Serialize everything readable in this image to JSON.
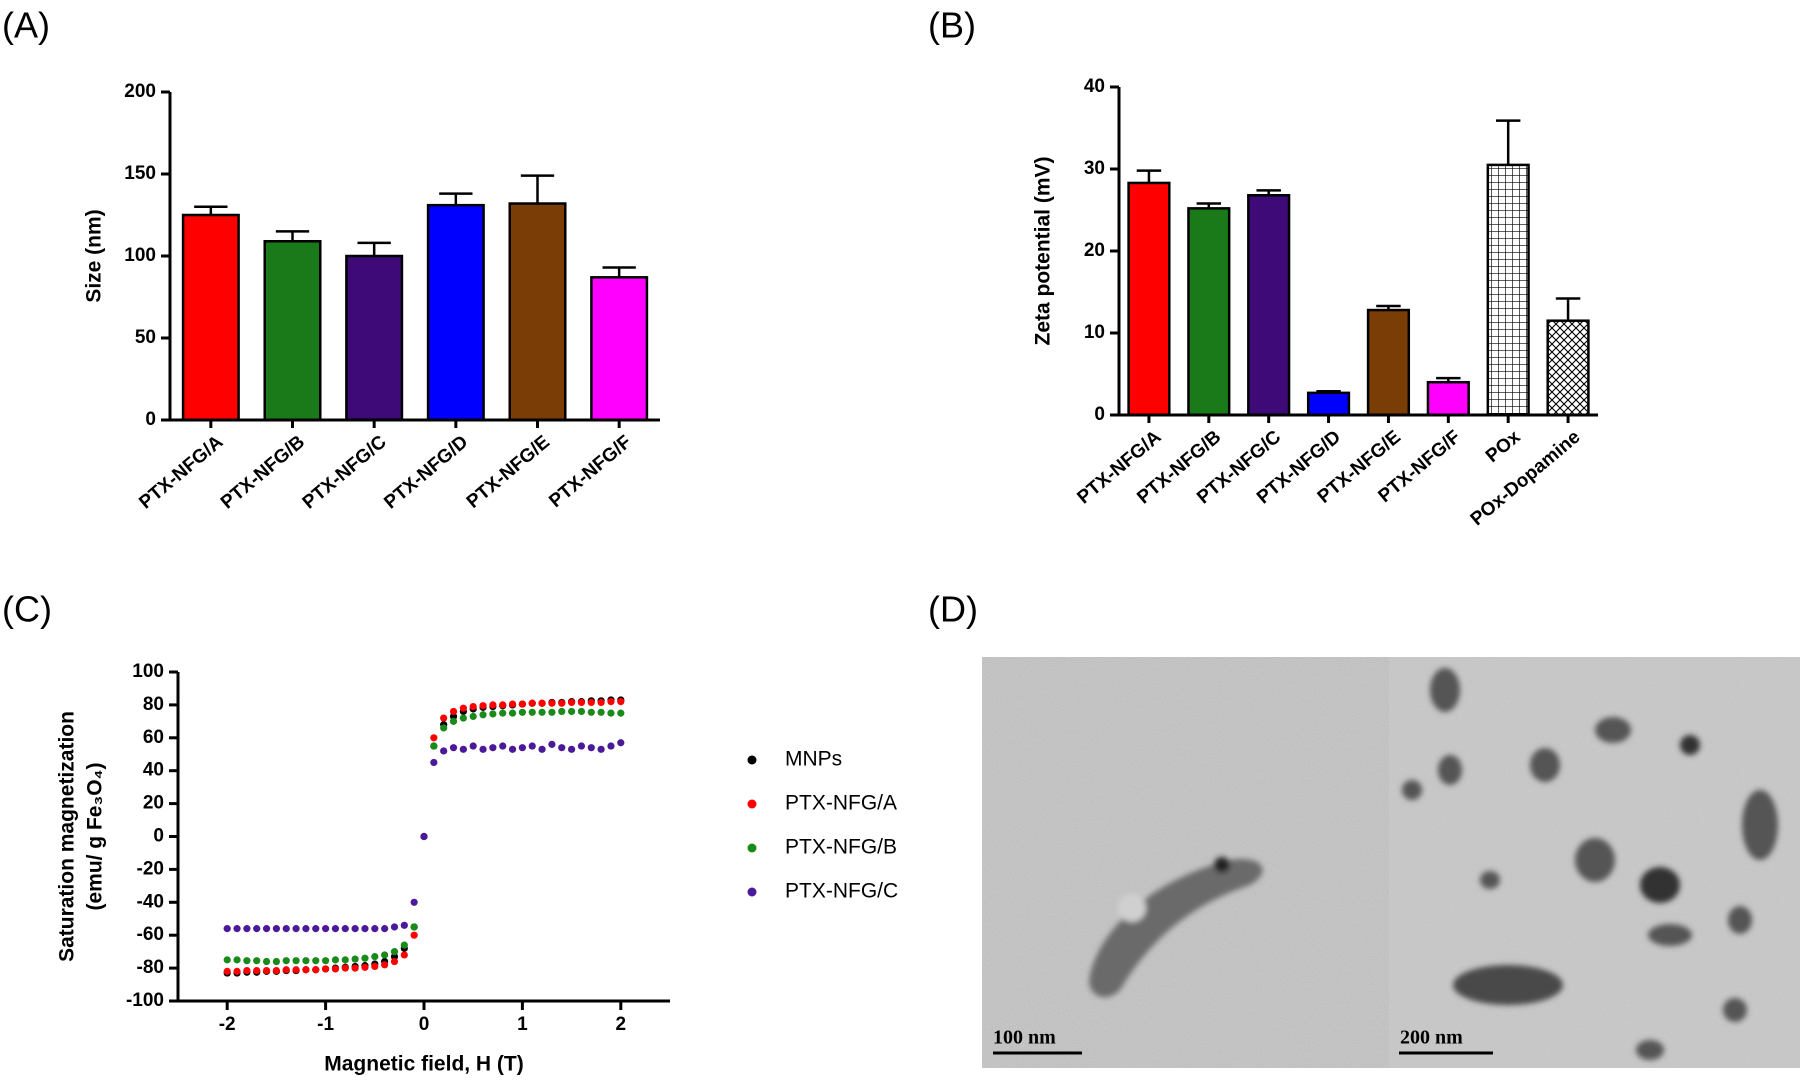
{
  "chart_data": [
    {
      "type": "bar",
      "panel": "(A)",
      "ylabel": "Size (nm)",
      "categories": [
        "PTX-NFG/A",
        "PTX-NFG/B",
        "PTX-NFG/C",
        "PTX-NFG/D",
        "PTX-NFG/E",
        "PTX-NFG/F"
      ],
      "values": [
        125,
        109,
        100,
        131,
        132,
        87
      ],
      "errors": [
        5,
        6,
        8,
        7,
        17,
        6
      ],
      "colors": [
        "#ff0000",
        "#1a7a1a",
        "#3d0a78",
        "#0000ff",
        "#7a3d05",
        "#ff00ff"
      ],
      "ylim": [
        0,
        200
      ],
      "yticks": [
        0,
        50,
        100,
        150,
        200
      ]
    },
    {
      "type": "bar",
      "panel": "(B)",
      "ylabel": "Zeta potential (mV)",
      "categories": [
        "PTX-NFG/A",
        "PTX-NFG/B",
        "PTX-NFG/C",
        "PTX-NFG/D",
        "PTX-NFG/E",
        "PTX-NFG/F",
        "POx",
        "POx-Dopamine"
      ],
      "values": [
        28.3,
        25.2,
        26.8,
        2.7,
        12.8,
        4.0,
        30.5,
        11.5
      ],
      "errors": [
        1.5,
        0.6,
        0.6,
        0.2,
        0.5,
        0.5,
        5.4,
        2.7
      ],
      "colors": [
        "#ff0000",
        "#1a7a1a",
        "#3d0a78",
        "#0000ff",
        "#7a3d05",
        "#ff00ff",
        "#ffffff",
        "#ffffff"
      ],
      "hatch": [
        null,
        null,
        null,
        null,
        null,
        null,
        "grid",
        "diagonal"
      ],
      "ylim": [
        0,
        40
      ],
      "yticks": [
        0,
        10,
        20,
        30,
        40
      ]
    },
    {
      "type": "scatter",
      "panel": "(C)",
      "xlabel": "Magnetic field, H (T)",
      "ylabel": [
        "Saturation magnetization",
        "(emu/ g Fe₃O₄)"
      ],
      "x": [
        -2.0,
        -1.9,
        -1.8,
        -1.7,
        -1.6,
        -1.5,
        -1.4,
        -1.3,
        -1.2,
        -1.1,
        -1.0,
        -0.9,
        -0.8,
        -0.7,
        -0.6,
        -0.5,
        -0.4,
        -0.3,
        -0.2,
        -0.1,
        0.0,
        0.1,
        0.2,
        0.3,
        0.4,
        0.5,
        0.6,
        0.7,
        0.8,
        0.9,
        1.0,
        1.1,
        1.2,
        1.3,
        1.4,
        1.5,
        1.6,
        1.7,
        1.8,
        1.9,
        2.0
      ],
      "series": [
        {
          "name": "MNPs",
          "color": "#000000",
          "values": [
            -83,
            -83,
            -82.5,
            -82.5,
            -82,
            -82,
            -81.5,
            -81.5,
            -81,
            -81,
            -80.5,
            -80,
            -79.5,
            -79,
            -78.5,
            -77.5,
            -76,
            -73,
            -68,
            -55,
            0,
            55,
            68,
            73,
            76,
            77.5,
            78.5,
            79,
            79.5,
            80,
            80.5,
            81,
            81,
            81.5,
            81.5,
            82,
            82,
            82.5,
            82.5,
            83,
            83
          ]
        },
        {
          "name": "PTX-NFG/A",
          "color": "#ff0000",
          "values": [
            -82,
            -82,
            -81.5,
            -81.5,
            -81.5,
            -81.5,
            -81,
            -81,
            -81,
            -81,
            -80.5,
            -80.5,
            -80,
            -80,
            -79.5,
            -79,
            -78,
            -76,
            -72,
            -60,
            0,
            60,
            72,
            76,
            78,
            79,
            79.5,
            80,
            80,
            80.5,
            80.5,
            81,
            81,
            81,
            81,
            81.5,
            81.5,
            81.5,
            81.5,
            82,
            82
          ]
        },
        {
          "name": "PTX-NFG/B",
          "color": "#1a8a1a",
          "values": [
            -75,
            -75,
            -75.5,
            -75.5,
            -76,
            -76,
            -75.5,
            -75.5,
            -75.5,
            -75.5,
            -75.5,
            -75,
            -75,
            -74.5,
            -74,
            -73,
            -72,
            -70,
            -66,
            -55,
            0,
            55,
            66,
            70,
            72,
            73,
            74,
            74.5,
            75,
            75,
            75.5,
            75.5,
            75.5,
            75.5,
            76,
            76,
            76,
            75.5,
            75.5,
            75,
            75
          ]
        },
        {
          "name": "PTX-NFG/C",
          "color": "#4b1a9a",
          "values": [
            -56,
            -56,
            -56,
            -56,
            -56,
            -56,
            -56,
            -56,
            -56,
            -56,
            -56,
            -56,
            -56,
            -56,
            -56,
            -56,
            -56,
            -55,
            -54,
            -40,
            0,
            45,
            52,
            54,
            53,
            55,
            53,
            54,
            55,
            53,
            54,
            55,
            53,
            56,
            54,
            53,
            55,
            54,
            53,
            55,
            57
          ]
        }
      ],
      "xlim": [
        -2.5,
        2.5
      ],
      "xticks": [
        -2,
        -1,
        0,
        1,
        2
      ],
      "ylim": [
        -100,
        100
      ],
      "yticks": [
        -100,
        -80,
        -60,
        -40,
        -20,
        0,
        20,
        40,
        60,
        80,
        100
      ]
    }
  ],
  "image_panel": {
    "panel": "(D)",
    "scale_bars": [
      "100 nm",
      "200 nm"
    ]
  }
}
